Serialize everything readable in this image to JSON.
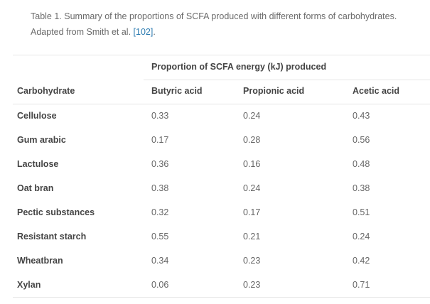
{
  "caption": {
    "text": "Table 1. Summary of the proportions of SCFA produced with different forms of carbohydrates. Adapted from Smith et al. ",
    "ref_link": "[102]",
    "trailing": "."
  },
  "table": {
    "span_header": "Proportion of SCFA energy (kJ) produced",
    "columns": [
      "Carbohydrate",
      "Butyric acid",
      "Propionic acid",
      "Acetic acid"
    ],
    "rows": [
      [
        "Cellulose",
        "0.33",
        "0.24",
        "0.43"
      ],
      [
        "Gum arabic",
        "0.17",
        "0.28",
        "0.56"
      ],
      [
        "Lactulose",
        "0.36",
        "0.16",
        "0.48"
      ],
      [
        "Oat bran",
        "0.38",
        "0.24",
        "0.38"
      ],
      [
        "Pectic substances",
        "0.32",
        "0.17",
        "0.51"
      ],
      [
        "Resistant starch",
        "0.55",
        "0.21",
        "0.24"
      ],
      [
        "Wheatbran",
        "0.34",
        "0.23",
        "0.42"
      ],
      [
        "Xylan",
        "0.06",
        "0.23",
        "0.71"
      ]
    ]
  },
  "colors": {
    "link": "#2a7ab0",
    "rule": "#e6e6e6"
  }
}
